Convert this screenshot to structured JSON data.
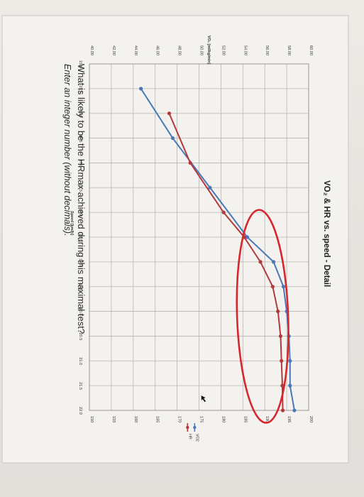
{
  "chart_data": {
    "type": "line",
    "title": "VO₂ & HR vs. speed - Detail",
    "xlabel": "Speed [km/h]",
    "ylabel_left": "VO₂ [ml/kg/min]",
    "x_ticks": [
      "15.0",
      "15.5",
      "16.0",
      "16.5",
      "17.0",
      "17.5",
      "18.0",
      "18.5",
      "19.0",
      "19.5",
      "20.0",
      "20.5",
      "21.0",
      "21.5",
      "22.0"
    ],
    "x_range": [
      15.0,
      22.0
    ],
    "y_left_ticks": [
      "40.00",
      "42.00",
      "44.00",
      "46.00",
      "48.00",
      "50.00",
      "52.00",
      "54.00",
      "56.00",
      "58.00",
      "60.00"
    ],
    "y_left_range": [
      40,
      60
    ],
    "y_right_ticks": [
      "150",
      "155",
      "160",
      "165",
      "170",
      "175",
      "180",
      "185",
      "190",
      "195",
      "200"
    ],
    "y_right_range": [
      150,
      200
    ],
    "grid": true,
    "legend_position": "right",
    "series": [
      {
        "name": "VO2",
        "color": "#4a78b8",
        "axis": "left",
        "x": [
          15.5,
          16.5,
          17.5,
          18.5,
          19.0,
          19.5,
          20.0,
          20.5,
          21.0,
          21.5,
          22.0
        ],
        "values": [
          44.7,
          47.6,
          51.0,
          54.4,
          56.8,
          57.7,
          58.0,
          58.2,
          58.3,
          58.3,
          58.7
        ]
      },
      {
        "name": "HR",
        "color": "#b23a3a",
        "axis": "right",
        "x": [
          16.0,
          17.0,
          18.0,
          18.5,
          19.0,
          19.5,
          20.0,
          20.5,
          21.0,
          21.5,
          22.0
        ],
        "values": [
          168.2,
          173.0,
          180.6,
          185.3,
          189.0,
          191.8,
          193.0,
          193.6,
          193.8,
          194.0,
          194.1
        ]
      }
    ],
    "annotation": {
      "type": "ellipse",
      "color": "#d8262f"
    }
  },
  "question": {
    "text": "What is likely to be the HRmax achieved during this maximal test?",
    "hint": "Enter an integer number (without decimals)."
  }
}
